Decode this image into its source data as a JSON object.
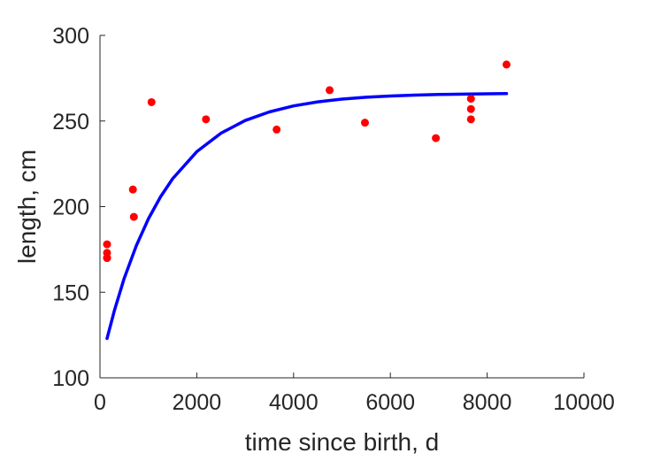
{
  "chart_data": {
    "type": "scatter",
    "title": "",
    "xlabel": "time since birth, d",
    "ylabel": "length, cm",
    "xlim": [
      0,
      10000
    ],
    "ylim": [
      100,
      300
    ],
    "xticks": [
      0,
      2000,
      4000,
      6000,
      8000,
      10000
    ],
    "yticks": [
      100,
      150,
      200,
      250,
      300
    ],
    "xtick_labels": [
      "0",
      "2000",
      "4000",
      "6000",
      "8000",
      "10000"
    ],
    "ytick_labels": [
      "100",
      "150",
      "200",
      "250",
      "300"
    ],
    "grid": false,
    "legend": "none",
    "series": [
      {
        "kind": "points",
        "color": "#ff0000",
        "x": [
          146,
          146,
          146,
          146,
          680,
          700,
          1065,
          2190,
          3650,
          4745,
          5475,
          6940,
          7665,
          7665,
          7665,
          8400
        ],
        "y": [
          178,
          173,
          170,
          170,
          210,
          194,
          261,
          251,
          245,
          268,
          249,
          240,
          263,
          257,
          251,
          283
        ]
      },
      {
        "kind": "fitted-curve",
        "color": "#0000ff",
        "x": [
          146,
          300,
          500,
          750,
          1000,
          1250,
          1500,
          2000,
          2500,
          3000,
          3500,
          4000,
          4500,
          5000,
          5500,
          6000,
          6500,
          7000,
          7500,
          8000,
          8400
        ],
        "y": [
          123,
          139.5,
          158.0,
          177.1,
          192.8,
          205.7,
          216.3,
          232.1,
          242.9,
          250.3,
          255.3,
          258.8,
          261.2,
          262.8,
          263.9,
          264.6,
          265.1,
          265.5,
          265.7,
          265.9,
          266
        ]
      }
    ]
  }
}
